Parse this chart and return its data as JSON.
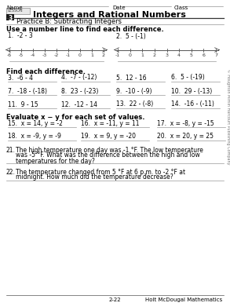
{
  "title": "Integers and Rational Numbers",
  "lesson_num": "3",
  "lesson_label": "LESSON",
  "subtitle": "Practice B: Subtracting Integers",
  "name_label": "Name",
  "date_label": "Date",
  "class_label": "Class",
  "section1_header": "Use a number line to find each difference.",
  "prob1": "1.  -2 - 3",
  "prob2": "2.  5 - (-1)",
  "number_line1_ticks": [
    "-6",
    "-5",
    "-4",
    "-3",
    "-2",
    "-1",
    "0",
    "1",
    "2"
  ],
  "number_line2_ticks": [
    "-1",
    "0",
    "1",
    "2",
    "3",
    "4",
    "5",
    "6",
    "7"
  ],
  "section2_header": "Find each difference.",
  "row1": [
    "3.  -6 - 4",
    "4.  -7 - (-12)",
    "5.  12 - 16",
    "6.  5 - (-19)"
  ],
  "row2": [
    "7.  -18 - (-18)",
    "8.  23 - (-23)",
    "9.  -10 - (-9)",
    "10.  29 - (-13)"
  ],
  "row3": [
    "11.  9 - 15",
    "12.  -12 - 14",
    "13.  22 - (-8)",
    "14.  -16 - (-11)"
  ],
  "section3_header": "Evaluate x − y for each set of values.",
  "row4_italic": [
    "x",
    "y",
    "x",
    "y",
    "x",
    "y"
  ],
  "row4": [
    "15.  x = 14, y = -2",
    "16.  x = -11, y = 11",
    "17.  x = -8, y = -15"
  ],
  "row5": [
    "18.  x = -9, y = -9",
    "19.  x = 9, y = -20",
    "20.  x = 20, y = 25"
  ],
  "prob21_label": "21.",
  "prob21_line1": "The high temperature one day was -1 °F. The low temperature",
  "prob21_line2": "was -5 °F. What was the difference between the high and low",
  "prob21_line3": "temperatures for the day?",
  "prob22_label": "22.",
  "prob22_line1": "The temperature changed from 5 °F at 6 p.m. to -2 °F at",
  "prob22_line2": "midnight. How much did the temperature decrease?",
  "footer_left": "2-22",
  "footer_right": "Holt McDougal Mathematics",
  "copyright": "© Houghton Mifflin Harcourt Publishing Company",
  "bg_color": "#ffffff"
}
